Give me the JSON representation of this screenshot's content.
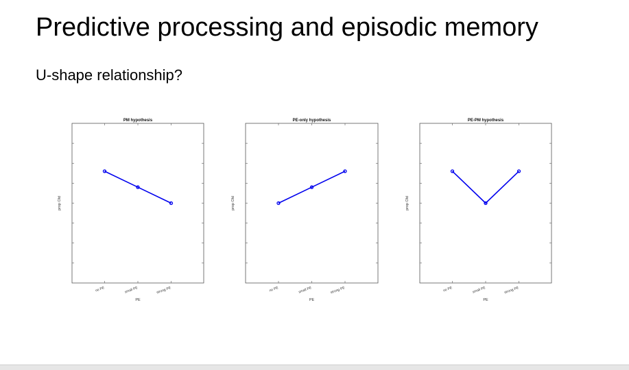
{
  "slide": {
    "title": "Predictive processing and episodic memory",
    "subtitle": "U-shape relationship?"
  },
  "colors": {
    "line": "#0000ee",
    "axis": "#555555"
  },
  "chart_data": [
    {
      "type": "line",
      "title": "PM hypothesis",
      "xlabel": "PE",
      "ylabel": "prop Old",
      "categories": [
        "no PE",
        "small PE",
        "strong PE"
      ],
      "values": [
        3,
        2,
        1
      ],
      "ylim": [
        -4,
        6
      ]
    },
    {
      "type": "line",
      "title": "PE-only hypothesis",
      "xlabel": "PE",
      "ylabel": "prop Old",
      "categories": [
        "no PE",
        "small PE",
        "strong PE"
      ],
      "values": [
        1,
        2,
        3
      ],
      "ylim": [
        -4,
        6
      ]
    },
    {
      "type": "line",
      "title": "PE-PM hypothesis",
      "xlabel": "PE",
      "ylabel": "prop Old",
      "categories": [
        "no PE",
        "small PE",
        "strong PE"
      ],
      "values": [
        3,
        1,
        3
      ],
      "ylim": [
        -4,
        6
      ]
    }
  ]
}
